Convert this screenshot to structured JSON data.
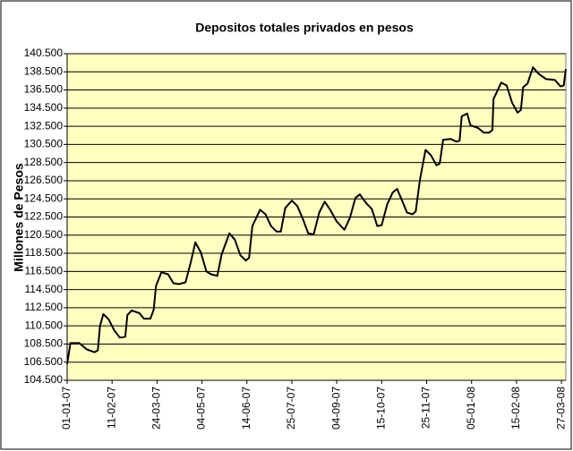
{
  "chart_data": {
    "type": "line",
    "title": "Depositos totales privados en pesos",
    "y_label": "Millones de Pesos",
    "x": [
      "01-01-07",
      "04-01-07",
      "12-01-07",
      "19-01-07",
      "26-01-07",
      "29-01-07",
      "31-01-07",
      "03-02-07",
      "08-02-07",
      "13-02-07",
      "18-02-07",
      "23-02-07",
      "25-02-07",
      "01-03-07",
      "08-03-07",
      "12-03-07",
      "18-03-07",
      "21-03-07",
      "23-03-07",
      "28-03-07",
      "03-04-07",
      "08-04-07",
      "13-04-07",
      "19-04-07",
      "24-04-07",
      "28-04-07",
      "03-05-07",
      "08-05-07",
      "12-05-07",
      "18-05-07",
      "22-05-07",
      "29-05-07",
      "03-06-07",
      "08-06-07",
      "13-06-07",
      "16-06-07",
      "19-06-07",
      "26-06-07",
      "01-07-07",
      "06-07-07",
      "11-07-07",
      "15-07-07",
      "19-07-07",
      "25-07-07",
      "30-07-07",
      "04-08-07",
      "09-08-07",
      "14-08-07",
      "19-08-07",
      "24-08-07",
      "29-08-07",
      "04-09-07",
      "11-09-07",
      "16-09-07",
      "21-09-07",
      "25-09-07",
      "01-10-07",
      "06-10-07",
      "11-10-07",
      "15-10-07",
      "20-10-07",
      "25-10-07",
      "29-10-07",
      "03-11-07",
      "07-11-07",
      "12-11-07",
      "15-11-07",
      "19-11-07",
      "24-11-07",
      "29-11-07",
      "04-12-07",
      "07-12-07",
      "10-12-07",
      "17-12-07",
      "22-12-07",
      "25-12-07",
      "27-12-07",
      "01-01-08",
      "04-01-08",
      "11-01-08",
      "16-01-08",
      "21-01-08",
      "24-01-08",
      "25-01-08",
      "01-02-08",
      "06-02-08",
      "11-02-08",
      "16-02-08",
      "19-02-08",
      "21-02-08",
      "25-02-08",
      "01-03-08",
      "06-03-08",
      "13-03-08",
      "21-03-08",
      "26-03-08",
      "29-03-08",
      "31-03-08"
    ],
    "series": [
      {
        "name": "Depositos totales privados en pesos",
        "color": "#000000",
        "values": [
          106300,
          108600,
          108600,
          107900,
          107600,
          107800,
          110500,
          111800,
          111200,
          110000,
          109200,
          109300,
          111700,
          112200,
          111900,
          111300,
          111300,
          112300,
          114900,
          116400,
          116200,
          115200,
          115100,
          115300,
          117600,
          119700,
          118600,
          116500,
          116200,
          116000,
          118400,
          120700,
          120000,
          118300,
          117700,
          118000,
          121500,
          123300,
          122800,
          121500,
          120900,
          120900,
          123500,
          124300,
          123700,
          122300,
          120700,
          120600,
          123000,
          124200,
          123300,
          122000,
          121100,
          122400,
          124600,
          125000,
          124000,
          123400,
          121500,
          121600,
          123900,
          125200,
          125600,
          124200,
          123000,
          122800,
          123100,
          126700,
          129900,
          129300,
          128200,
          128400,
          131000,
          131100,
          130800,
          130900,
          133600,
          133900,
          132600,
          132300,
          131800,
          131800,
          132100,
          135500,
          137300,
          137000,
          135100,
          134000,
          134300,
          136800,
          137200,
          139000,
          138300,
          137700,
          137600,
          136900,
          137000,
          138800
        ]
      }
    ],
    "xlim": [
      "01-01-07",
      "31-03-08"
    ],
    "xticks": [
      "01-01-07",
      "11-02-07",
      "24-03-07",
      "04-05-07",
      "14-06-07",
      "25-07-07",
      "04-09-07",
      "15-10-07",
      "25-11-07",
      "05-01-08",
      "15-02-08",
      "27-03-08"
    ],
    "ylim": [
      104500,
      140500
    ],
    "yticks": [
      {
        "value": 104500,
        "label": "104.500"
      },
      {
        "value": 106500,
        "label": "106.500"
      },
      {
        "value": 108500,
        "label": "108.500"
      },
      {
        "value": 110500,
        "label": "110.500"
      },
      {
        "value": 112500,
        "label": "112.500"
      },
      {
        "value": 114500,
        "label": "114.500"
      },
      {
        "value": 116500,
        "label": "116.500"
      },
      {
        "value": 118500,
        "label": "118.500"
      },
      {
        "value": 120500,
        "label": "120.500"
      },
      {
        "value": 122500,
        "label": "122.500"
      },
      {
        "value": 124500,
        "label": "124.500"
      },
      {
        "value": 126500,
        "label": "126.500"
      },
      {
        "value": 128500,
        "label": "128.500"
      },
      {
        "value": 130500,
        "label": "130.500"
      },
      {
        "value": 132500,
        "label": "132.500"
      },
      {
        "value": 134500,
        "label": "134.500"
      },
      {
        "value": 136500,
        "label": "136.500"
      },
      {
        "value": 138500,
        "label": "138.500"
      },
      {
        "value": 140500,
        "label": "140.500"
      }
    ],
    "grid": true,
    "plot_background": "#ffffc0"
  }
}
